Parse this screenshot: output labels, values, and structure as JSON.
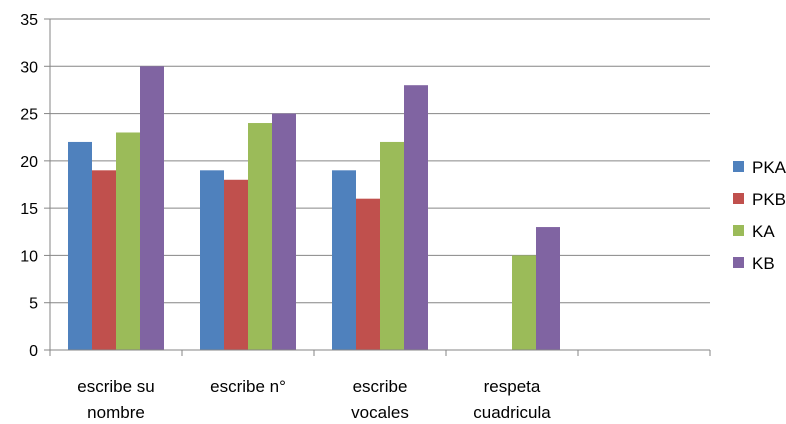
{
  "chart_data": {
    "type": "bar",
    "categories": [
      [
        "escribe su",
        "nombre"
      ],
      [
        "escribe n°"
      ],
      [
        "escribe",
        "vocales"
      ],
      [
        "respeta",
        "cuadricula"
      ],
      [
        ""
      ]
    ],
    "series": [
      {
        "name": "PKA",
        "color": "#4f81bd",
        "values": [
          22,
          19,
          19,
          null,
          null
        ]
      },
      {
        "name": "PKB",
        "color": "#c0504d",
        "values": [
          19,
          18,
          16,
          null,
          null
        ]
      },
      {
        "name": "KA",
        "color": "#9bbb59",
        "values": [
          23,
          24,
          22,
          10,
          null
        ]
      },
      {
        "name": "KB",
        "color": "#8064a2",
        "values": [
          30,
          25,
          28,
          13,
          null
        ]
      }
    ],
    "ylim": [
      0,
      35
    ],
    "yticks": [
      0,
      5,
      10,
      15,
      20,
      25,
      30,
      35
    ],
    "grid": true,
    "legend": "right",
    "title": "",
    "xlabel": "",
    "ylabel": ""
  }
}
